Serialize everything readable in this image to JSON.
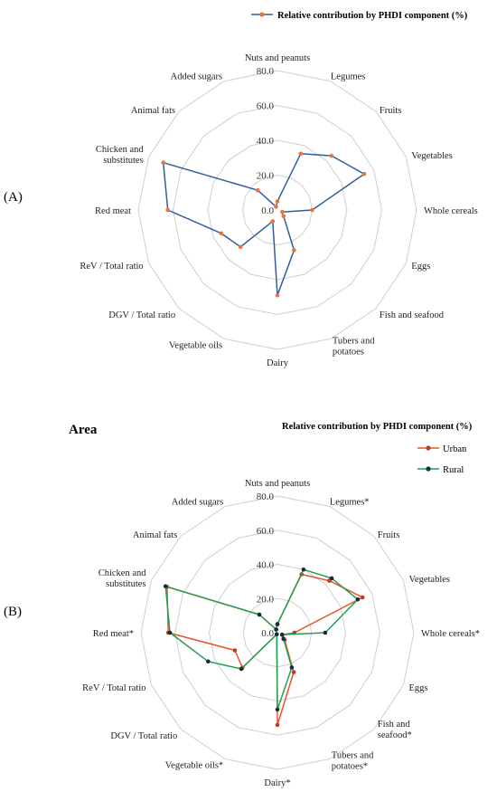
{
  "chart_data": [
    {
      "type": "radar",
      "panel_label": "(A)",
      "legend": {
        "title": "Relative contribution by PHDI component (%)",
        "placement": "top-right"
      },
      "categories": [
        "Nuts and peanuts",
        "Legumes",
        "Fruits",
        "Vegetables",
        "Whole cereals",
        "Eggs",
        "Fish and seafood",
        "Tubers and potatoes",
        "Dairy",
        "Vegetable oils",
        "DGV / Total ratio",
        "ReV / Total ratio",
        "Red meat",
        "Chicken and substitutes",
        "Animal fats",
        "Added sugars"
      ],
      "ticks": [
        0.0,
        20.0,
        40.0,
        60.0,
        80.0
      ],
      "rlim": [
        0,
        80
      ],
      "series": [
        {
          "name": "Relative contribution by PHDI component (%)",
          "color": "#2e5e9e",
          "marker": "#e8743b",
          "values": [
            5,
            35,
            44,
            54,
            20,
            3,
            5,
            25,
            49,
            7,
            30,
            35,
            63,
            71,
            16,
            2
          ]
        }
      ]
    },
    {
      "type": "radar",
      "panel_label": "(B)",
      "title": "Area",
      "legend": {
        "title": "Relative contribution by PHDI component (%)",
        "placement": "top-right"
      },
      "categories": [
        "Nuts and peanuts",
        "Legumes*",
        "Fruits",
        "Vegetables",
        "Whole cereals*",
        "Eggs",
        "Fish and seafood*",
        "Tubers and potatoes*",
        "Dairy*",
        "Vegetable oils*",
        "DGV / Total ratio",
        "ReV / Total ratio",
        "Red meat*",
        "Chicken and substitutes",
        "Animal fats",
        "Added sugars"
      ],
      "ticks": [
        0.0,
        20.0,
        40.0,
        60.0,
        80.0
      ],
      "rlim": [
        0,
        80
      ],
      "series": [
        {
          "name": "Urban",
          "color": "#e8542a",
          "marker": "#c0392b",
          "values": [
            5,
            37,
            43,
            54,
            10,
            3,
            6,
            25,
            54,
            1,
            29,
            27,
            64,
            70,
            15,
            2
          ]
        },
        {
          "name": "Rural",
          "color": "#22a150",
          "marker": "#1a2b3c",
          "values": [
            5,
            40,
            45,
            51,
            28,
            3,
            5,
            22,
            45,
            1,
            30,
            44,
            63,
            71,
            15,
            2
          ]
        }
      ]
    }
  ]
}
